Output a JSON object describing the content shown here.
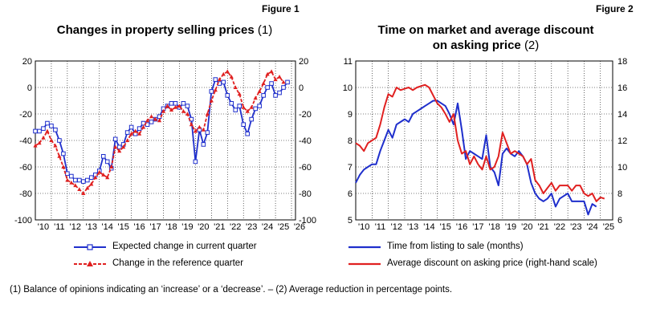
{
  "colors": {
    "blue": "#1f2fcc",
    "red": "#e02020",
    "axis": "#000000",
    "grid": "#000000"
  },
  "figure1": {
    "label": "Figure 1",
    "title": "Changes in property selling prices",
    "title_note": "(1)",
    "legend": [
      "Expected change in current quarter",
      "Change in the reference quarter"
    ]
  },
  "figure2": {
    "label": "Figure 2",
    "title_line1": "Time on market and average discount",
    "title_line2": "on asking price",
    "title_note": "(2)",
    "legend": [
      "Time from listing to sale (months)",
      "Average discount on asking price (right-hand scale)"
    ]
  },
  "footnote": "(1) Balance of opinions indicating an ‘increase’ or a ‘decrease’. – (2) Average reduction in percentage points.",
  "chart_data": [
    {
      "type": "line",
      "title": "Changes in property selling prices (1)",
      "x_ticks": [
        "'10",
        "'11",
        "'12",
        "'13",
        "'14",
        "'15",
        "'16",
        "'17",
        "'18",
        "'19",
        "'20",
        "'21",
        "'22",
        "'23",
        "'24",
        "'25",
        "'26"
      ],
      "x_range": [
        2010.0,
        2026.25
      ],
      "y_ticks": [
        20,
        0,
        -20,
        -40,
        -60,
        -80,
        -100
      ],
      "ylim": [
        -100,
        20
      ],
      "y2_ticks": [
        20,
        0,
        -20,
        -40,
        -60,
        -80,
        -100
      ],
      "series": [
        {
          "name": "Expected change in current quarter",
          "color": "#1f2fcc",
          "marker": "square",
          "x": [
            2010.0,
            2010.25,
            2010.5,
            2010.75,
            2011.0,
            2011.25,
            2011.5,
            2011.75,
            2012.0,
            2012.25,
            2012.5,
            2012.75,
            2013.0,
            2013.25,
            2013.5,
            2013.75,
            2014.0,
            2014.25,
            2014.5,
            2014.75,
            2015.0,
            2015.25,
            2015.5,
            2015.75,
            2016.0,
            2016.25,
            2016.5,
            2016.75,
            2017.0,
            2017.25,
            2017.5,
            2017.75,
            2018.0,
            2018.25,
            2018.5,
            2018.75,
            2019.0,
            2019.25,
            2019.5,
            2019.75,
            2020.0,
            2020.25,
            2020.5,
            2020.75,
            2021.0,
            2021.25,
            2021.5,
            2021.75,
            2022.0,
            2022.25,
            2022.5,
            2022.75,
            2023.0,
            2023.25,
            2023.5,
            2023.75,
            2024.0,
            2024.25,
            2024.5,
            2024.75,
            2025.0,
            2025.25,
            2025.5,
            2025.75,
            2026.0
          ],
          "values": [
            -33,
            -33,
            -31,
            -27,
            -29,
            -32,
            -40,
            -50,
            -65,
            -67,
            -70,
            -70,
            -71,
            -70,
            -68,
            -66,
            -63,
            -52,
            -56,
            -61,
            -39,
            -45,
            -43,
            -34,
            -30,
            -35,
            -31,
            -27,
            -28,
            -26,
            -24,
            -22,
            -16,
            -14,
            -12,
            -12,
            -15,
            -12,
            -14,
            -24,
            -56,
            -32,
            -43,
            -34,
            -3,
            6,
            3,
            4,
            -6,
            -12,
            -17,
            -14,
            -28,
            -35,
            -24,
            -16,
            -14,
            -6,
            0,
            3,
            -6,
            -4,
            0,
            4,
            null
          ]
        },
        {
          "name": "Change in the reference quarter",
          "color": "#e02020",
          "marker": "triangle",
          "x": [
            2010.0,
            2010.25,
            2010.5,
            2010.75,
            2011.0,
            2011.25,
            2011.5,
            2011.75,
            2012.0,
            2012.25,
            2012.5,
            2012.75,
            2013.0,
            2013.25,
            2013.5,
            2013.75,
            2014.0,
            2014.25,
            2014.5,
            2014.75,
            2015.0,
            2015.25,
            2015.5,
            2015.75,
            2016.0,
            2016.25,
            2016.5,
            2016.75,
            2017.0,
            2017.25,
            2017.5,
            2017.75,
            2018.0,
            2018.25,
            2018.5,
            2018.75,
            2019.0,
            2019.25,
            2019.5,
            2019.75,
            2020.0,
            2020.25,
            2020.5,
            2020.75,
            2021.0,
            2021.25,
            2021.5,
            2021.75,
            2022.0,
            2022.25,
            2022.5,
            2022.75,
            2023.0,
            2023.25,
            2023.5,
            2023.75,
            2024.0,
            2024.25,
            2024.5,
            2024.75,
            2025.0,
            2025.25,
            2025.5,
            2025.75,
            2026.0
          ],
          "values": [
            -44,
            -42,
            -38,
            -33,
            -40,
            -44,
            -52,
            -60,
            -70,
            -72,
            -74,
            -77,
            -80,
            -76,
            -73,
            -68,
            -64,
            -66,
            -68,
            -60,
            -45,
            -48,
            -45,
            -40,
            -35,
            -33,
            -35,
            -30,
            -25,
            -22,
            -24,
            -25,
            -18,
            -14,
            -17,
            -15,
            -14,
            -18,
            -20,
            -28,
            -33,
            -30,
            -32,
            -20,
            -10,
            -2,
            6,
            10,
            12,
            8,
            0,
            -5,
            -15,
            -18,
            -15,
            -8,
            -3,
            3,
            10,
            12,
            6,
            8,
            4,
            null,
            null
          ]
        }
      ]
    },
    {
      "type": "line",
      "title": "Time on market and average discount on asking price (2)",
      "x_ticks": [
        "'10",
        "'11",
        "'12",
        "'13",
        "'14",
        "'15",
        "'16",
        "'17",
        "'18",
        "'19",
        "'20",
        "'21",
        "'22",
        "'23",
        "'24",
        "'25"
      ],
      "x_range": [
        2010.0,
        2025.75
      ],
      "y_ticks": [
        11,
        10,
        9,
        8,
        7,
        6,
        5
      ],
      "ylim": [
        5,
        11
      ],
      "y2_ticks": [
        18,
        16,
        14,
        12,
        10,
        8,
        6
      ],
      "y2lim": [
        6,
        18
      ],
      "series": [
        {
          "name": "Time from listing to sale (months)",
          "color": "#1f2fcc",
          "axis": "left",
          "x": [
            2010.0,
            2010.25,
            2010.5,
            2010.75,
            2011.0,
            2011.25,
            2011.5,
            2011.75,
            2012.0,
            2012.25,
            2012.5,
            2012.75,
            2013.0,
            2013.25,
            2013.5,
            2013.75,
            2014.0,
            2014.25,
            2014.5,
            2014.75,
            2015.0,
            2015.25,
            2015.5,
            2015.75,
            2016.0,
            2016.25,
            2016.5,
            2016.75,
            2017.0,
            2017.25,
            2017.5,
            2017.75,
            2018.0,
            2018.25,
            2018.5,
            2018.75,
            2019.0,
            2019.25,
            2019.5,
            2019.75,
            2020.0,
            2020.25,
            2020.5,
            2020.75,
            2021.0,
            2021.25,
            2021.5,
            2021.75,
            2022.0,
            2022.25,
            2022.5,
            2022.75,
            2023.0,
            2023.25,
            2023.5,
            2023.75,
            2024.0,
            2024.25,
            2024.5,
            2024.75,
            2025.0,
            2025.25,
            2025.5,
            2025.75
          ],
          "values": [
            6.4,
            6.7,
            6.9,
            7.0,
            7.1,
            7.1,
            7.6,
            8.0,
            8.4,
            8.1,
            8.6,
            8.7,
            8.8,
            8.7,
            9.0,
            9.1,
            9.2,
            9.3,
            9.4,
            9.5,
            9.5,
            9.4,
            9.3,
            9.0,
            8.6,
            9.4,
            8.4,
            7.3,
            7.6,
            7.5,
            7.4,
            7.3,
            8.2,
            7.0,
            6.8,
            6.3,
            7.5,
            7.7,
            7.5,
            7.4,
            7.6,
            7.4,
            7.1,
            6.4,
            6.0,
            5.8,
            5.7,
            5.8,
            6.0,
            5.5,
            5.8,
            5.9,
            6.0,
            5.7,
            5.7,
            5.7,
            5.7,
            5.2,
            5.6,
            5.5,
            null,
            null,
            null,
            null
          ]
        },
        {
          "name": "Average discount on asking price (right-hand scale)",
          "color": "#e02020",
          "axis": "right",
          "x": [
            2010.0,
            2010.25,
            2010.5,
            2010.75,
            2011.0,
            2011.25,
            2011.5,
            2011.75,
            2012.0,
            2012.25,
            2012.5,
            2012.75,
            2013.0,
            2013.25,
            2013.5,
            2013.75,
            2014.0,
            2014.25,
            2014.5,
            2014.75,
            2015.0,
            2015.25,
            2015.5,
            2015.75,
            2016.0,
            2016.25,
            2016.5,
            2016.75,
            2017.0,
            2017.25,
            2017.5,
            2017.75,
            2018.0,
            2018.25,
            2018.5,
            2018.75,
            2019.0,
            2019.25,
            2019.5,
            2019.75,
            2020.0,
            2020.25,
            2020.5,
            2020.75,
            2021.0,
            2021.25,
            2021.5,
            2021.75,
            2022.0,
            2022.25,
            2022.5,
            2022.75,
            2023.0,
            2023.25,
            2023.5,
            2023.75,
            2024.0,
            2024.25,
            2024.5,
            2024.75,
            2025.0,
            2025.25,
            2025.5,
            2025.75
          ],
          "values": [
            11.8,
            11.6,
            11.2,
            11.8,
            12.0,
            12.2,
            13.2,
            14.5,
            15.5,
            15.3,
            16.0,
            15.8,
            15.9,
            16.0,
            15.8,
            16.0,
            16.1,
            16.2,
            16.0,
            15.4,
            14.8,
            14.5,
            14.0,
            13.4,
            14.0,
            12.0,
            11.0,
            11.2,
            10.2,
            10.8,
            10.2,
            9.8,
            10.8,
            9.8,
            10.0,
            10.8,
            12.6,
            11.8,
            11.0,
            11.2,
            11.0,
            10.8,
            10.2,
            10.6,
            9.0,
            8.6,
            8.0,
            8.4,
            8.8,
            8.2,
            8.6,
            8.6,
            8.6,
            8.2,
            8.6,
            8.6,
            8.0,
            7.8,
            8.0,
            7.4,
            7.7,
            7.6,
            null,
            null
          ]
        }
      ]
    }
  ]
}
